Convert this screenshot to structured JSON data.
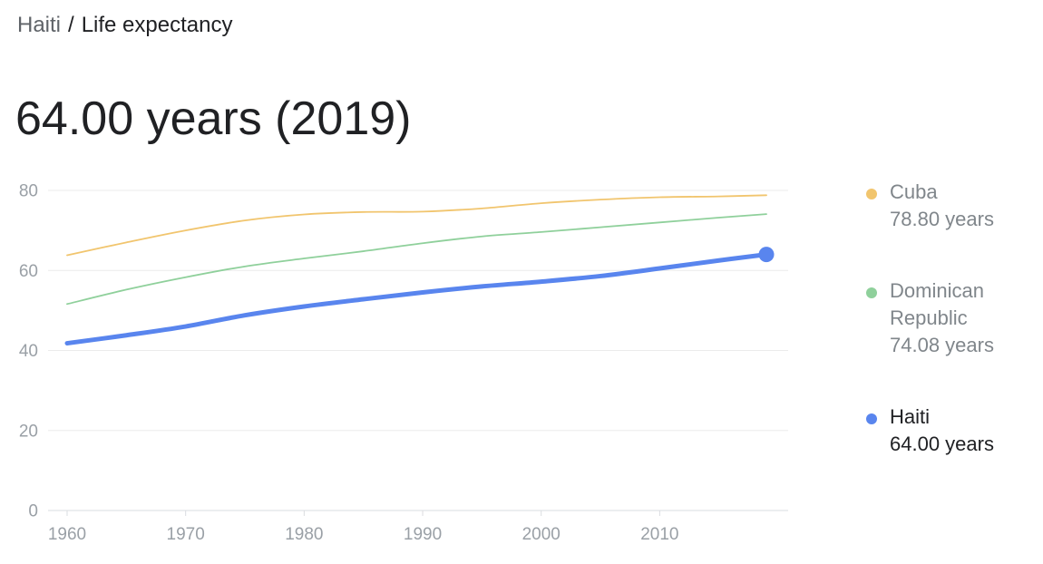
{
  "breadcrumb": {
    "parent": "Haiti",
    "separator": "/",
    "current": "Life expectancy"
  },
  "headline": "64.00 years (2019)",
  "legend": [
    {
      "name": "Cuba",
      "value": "78.80 years",
      "color": "#f1c56e",
      "active": false
    },
    {
      "name": "Dominican Republic",
      "value": "74.08 years",
      "color": "#8fd09b",
      "active": false
    },
    {
      "name": "Haiti",
      "value": "64.00 years",
      "color": "#5985ee",
      "active": true
    }
  ],
  "chart_data": {
    "type": "line",
    "xlabel": "",
    "ylabel": "",
    "xlim": [
      1960,
      2019
    ],
    "ylim": [
      0,
      80
    ],
    "x_ticks": [
      1960,
      1970,
      1980,
      1990,
      2000,
      2010
    ],
    "y_ticks": [
      0,
      20,
      40,
      60,
      80
    ],
    "grid": true,
    "legend_position": "right",
    "series": [
      {
        "name": "Cuba",
        "color": "#f1c56e",
        "x": [
          1960,
          1965,
          1970,
          1975,
          1980,
          1985,
          1990,
          1995,
          2000,
          2005,
          2010,
          2015,
          2019
        ],
        "values": [
          63.8,
          67.0,
          70.0,
          72.5,
          74.0,
          74.6,
          74.7,
          75.5,
          76.8,
          77.7,
          78.3,
          78.5,
          78.8
        ]
      },
      {
        "name": "Dominican Republic",
        "color": "#8fd09b",
        "x": [
          1960,
          1965,
          1970,
          1975,
          1980,
          1985,
          1990,
          1995,
          2000,
          2005,
          2010,
          2015,
          2019
        ],
        "values": [
          51.6,
          55.2,
          58.3,
          61.0,
          63.0,
          64.8,
          66.8,
          68.5,
          69.6,
          70.8,
          72.0,
          73.2,
          74.08
        ]
      },
      {
        "name": "Haiti",
        "color": "#5985ee",
        "highlight": true,
        "x": [
          1960,
          1965,
          1970,
          1975,
          1980,
          1985,
          1990,
          1995,
          2000,
          2005,
          2010,
          2015,
          2019
        ],
        "values": [
          41.8,
          43.8,
          46.0,
          48.8,
          51.0,
          52.8,
          54.5,
          56.0,
          57.2,
          58.6,
          60.5,
          62.5,
          64.0
        ]
      }
    ]
  }
}
